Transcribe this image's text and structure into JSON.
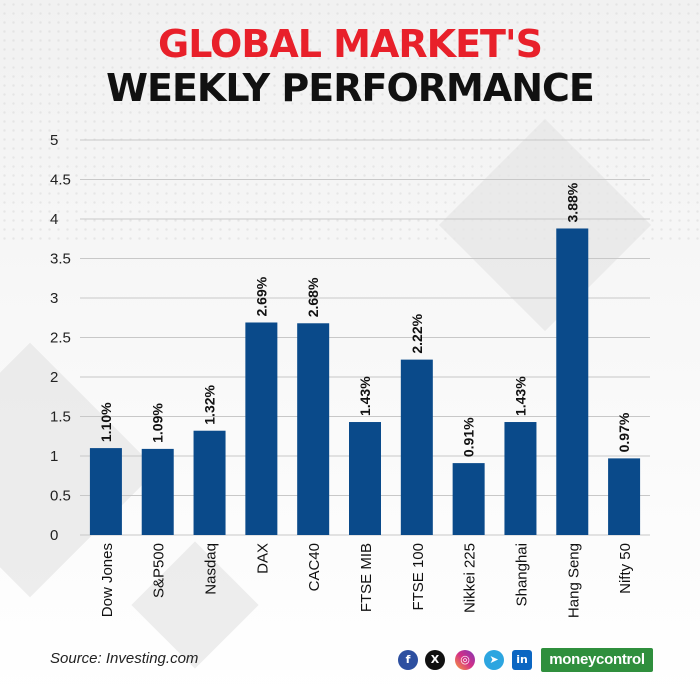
{
  "title_line1": "GLOBAL MARKET'S",
  "title_line2": "WEEKLY PERFORMANCE",
  "source": "Source: Investing.com",
  "brand": "moneycontrol",
  "social_icons": [
    "facebook-icon",
    "x-icon",
    "instagram-icon",
    "telegram-icon",
    "linkedin-icon"
  ],
  "colors": {
    "bar": "#0a4a8a",
    "title_accent": "#e8202a",
    "title_main": "#111111",
    "brand": "#2f8f3d"
  },
  "chart_data": {
    "type": "bar",
    "categories": [
      "Dow Jones",
      "S&P500",
      "Nasdaq",
      "DAX",
      "CAC40",
      "FTSE MIB",
      "FTSE 100",
      "Nikkei 225",
      "Shanghai",
      "Hang Seng",
      "Nifty 50"
    ],
    "values": [
      1.1,
      1.09,
      1.32,
      2.69,
      2.68,
      1.43,
      2.22,
      0.91,
      1.43,
      3.88,
      0.97
    ],
    "data_labels": [
      "1.10%",
      "1.09%",
      "1.32%",
      "2.69%",
      "2.68%",
      "1.43%",
      "2.22%",
      "0.91%",
      "1.43%",
      "3.88%",
      "0.97%"
    ],
    "y_ticks": [
      "0",
      "0.5",
      "1",
      "1.5",
      "2",
      "2.5",
      "3",
      "3.5",
      "4",
      "4.5",
      "5"
    ],
    "ylim": [
      0,
      5
    ],
    "grid": true
  }
}
